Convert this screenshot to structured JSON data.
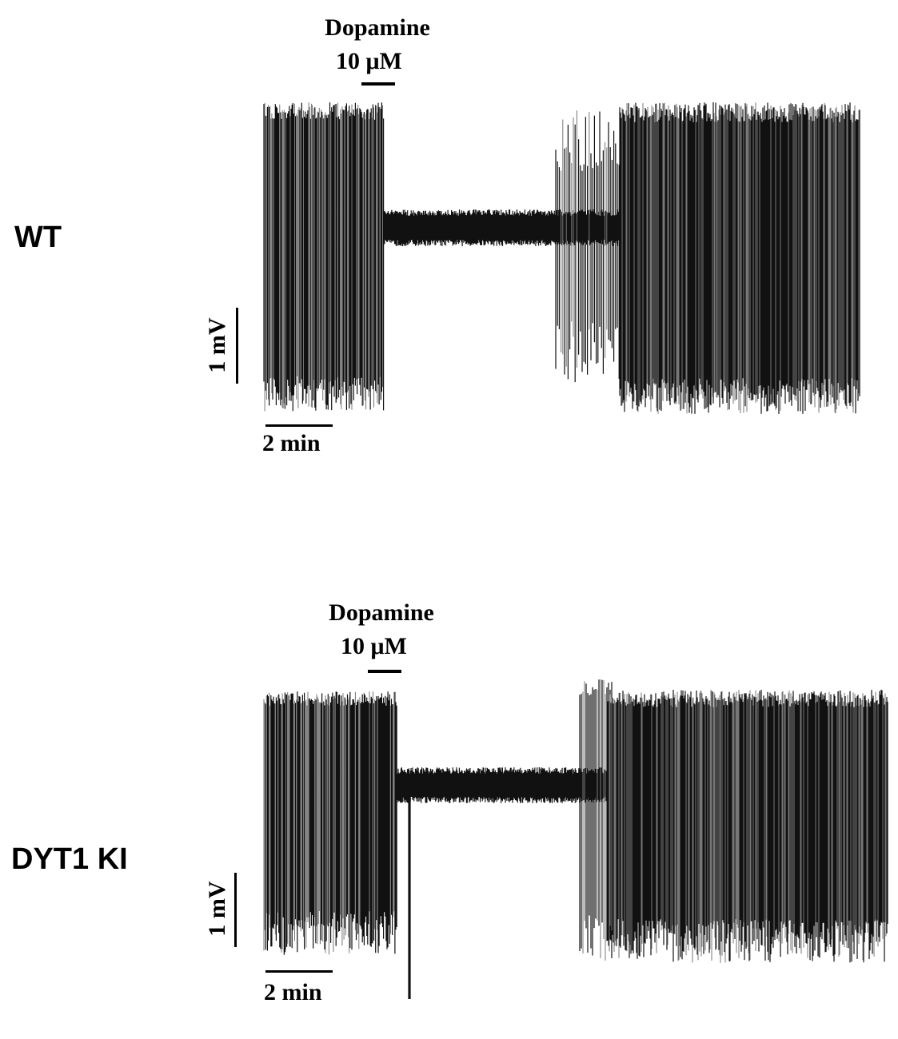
{
  "panels": [
    {
      "group": "WT",
      "drug": "Dopamine",
      "concentration": "10 μM",
      "scale_voltage": "1 mV",
      "scale_time": "2 min",
      "trace_color": "#111111"
    },
    {
      "group": "DYT1 KI",
      "drug": "Dopamine",
      "concentration": "10 μM",
      "scale_voltage": "1 mV",
      "scale_time": "2 min",
      "trace_color": "#111111"
    }
  ]
}
